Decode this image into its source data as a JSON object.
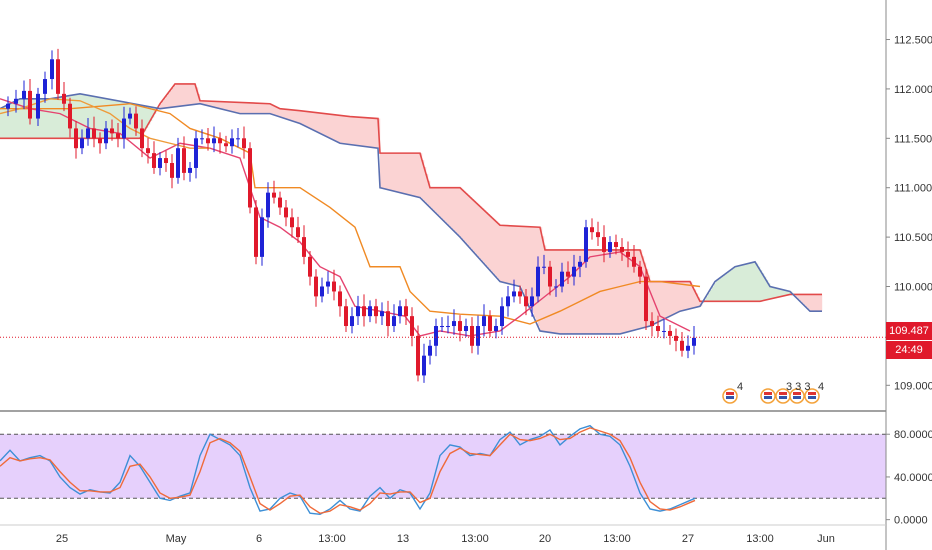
{
  "colors": {
    "bull": "#1e22d6",
    "bear": "#e0192b",
    "tenkan": "#e5436f",
    "kijun": "#f08a24",
    "chikou": "#ee9b3a",
    "spanA": "#e24a4a",
    "spanB": "#5a6fb0",
    "cloud_bull": "#d8ecd8",
    "cloud_bear": "#fbd3d3",
    "k_line": "#3d8fd6",
    "d_line": "#ef6a3a",
    "stoch_band": "#e2c8fb",
    "last_price": "#e0192b"
  },
  "price_axis": {
    "ticks": [
      "112.500",
      "112.000",
      "111.500",
      "111.000",
      "110.500",
      "110.000",
      "109.000"
    ],
    "last_price": "109.487",
    "countdown": "24:49"
  },
  "stoch_axis": {
    "ticks": [
      "80.0000",
      "40.0000",
      "0.0000"
    ]
  },
  "time_axis": {
    "labels": [
      "25",
      "May",
      "6",
      "13:00",
      "13",
      "13:00",
      "20",
      "13:00",
      "27",
      "13:00",
      "Jun"
    ]
  },
  "events": [
    {
      "icon": "us-flag-icon",
      "count": "4"
    },
    {
      "icon": "us-flag-icon",
      "count": "3 3 3"
    },
    {
      "icon": "us-flag-icon",
      "count": "4"
    }
  ],
  "chart_data": [
    {
      "type": "line",
      "subtype": "candlestick-ichimoku",
      "y_range": [
        108.75,
        112.9
      ],
      "x_labels": [
        "25",
        "May",
        "6",
        "13:00",
        "13",
        "13:00",
        "20",
        "13:00",
        "27",
        "13:00",
        "Jun"
      ],
      "last_price": 109.487,
      "series": [
        {
          "points": [
            [
              0,
              111.8
            ],
            [
              8,
              111.85
            ],
            [
              16,
              111.9
            ],
            [
              24,
              111.98
            ],
            [
              30,
              111.7
            ],
            [
              38,
              111.95
            ],
            [
              45,
              112.1
            ],
            [
              52,
              112.3
            ],
            [
              58,
              111.95
            ],
            [
              64,
              111.85
            ],
            [
              70,
              111.6
            ],
            [
              76,
              111.4
            ],
            [
              82,
              111.5
            ],
            [
              88,
              111.6
            ],
            [
              94,
              111.5
            ],
            [
              100,
              111.45
            ],
            [
              106,
              111.6
            ],
            [
              112,
              111.55
            ],
            [
              118,
              111.5
            ],
            [
              124,
              111.7
            ],
            [
              130,
              111.75
            ],
            [
              136,
              111.6
            ],
            [
              142,
              111.4
            ],
            [
              148,
              111.35
            ],
            [
              154,
              111.2
            ],
            [
              160,
              111.3
            ],
            [
              166,
              111.25
            ],
            [
              172,
              111.1
            ],
            [
              178,
              111.4
            ],
            [
              184,
              111.15
            ],
            [
              190,
              111.2
            ],
            [
              196,
              111.5
            ],
            [
              202,
              111.5
            ],
            [
              208,
              111.45
            ],
            [
              214,
              111.5
            ],
            [
              220,
              111.45
            ],
            [
              226,
              111.42
            ],
            [
              232,
              111.5
            ],
            [
              238,
              111.5
            ],
            [
              244,
              111.4
            ],
            [
              250,
              110.8
            ],
            [
              256,
              110.3
            ],
            [
              262,
              110.7
            ],
            [
              268,
              110.95
            ],
            [
              274,
              110.9
            ],
            [
              280,
              110.8
            ],
            [
              286,
              110.7
            ],
            [
              292,
              110.6
            ],
            [
              298,
              110.5
            ],
            [
              304,
              110.3
            ],
            [
              310,
              110.1
            ],
            [
              316,
              109.9
            ],
            [
              322,
              110.0
            ],
            [
              328,
              110.05
            ],
            [
              334,
              109.95
            ],
            [
              340,
              109.8
            ],
            [
              346,
              109.6
            ],
            [
              352,
              109.7
            ],
            [
              358,
              109.8
            ],
            [
              364,
              109.7
            ],
            [
              370,
              109.8
            ],
            [
              376,
              109.7
            ],
            [
              382,
              109.75
            ],
            [
              388,
              109.6
            ],
            [
              394,
              109.7
            ],
            [
              400,
              109.8
            ],
            [
              406,
              109.7
            ],
            [
              412,
              109.5
            ],
            [
              418,
              109.1
            ],
            [
              424,
              109.3
            ],
            [
              430,
              109.4
            ],
            [
              436,
              109.6
            ],
            [
              442,
              109.6
            ],
            [
              448,
              109.6
            ],
            [
              454,
              109.65
            ],
            [
              460,
              109.55
            ],
            [
              466,
              109.6
            ],
            [
              472,
              109.4
            ],
            [
              478,
              109.6
            ],
            [
              484,
              109.7
            ],
            [
              490,
              109.55
            ],
            [
              496,
              109.6
            ],
            [
              502,
              109.8
            ],
            [
              508,
              109.9
            ],
            [
              514,
              109.95
            ],
            [
              520,
              109.9
            ],
            [
              526,
              109.8
            ],
            [
              532,
              109.9
            ],
            [
              538,
              110.2
            ],
            [
              544,
              110.2
            ],
            [
              550,
              110.0
            ],
            [
              556,
              110.0
            ],
            [
              562,
              110.15
            ],
            [
              568,
              110.1
            ],
            [
              574,
              110.2
            ],
            [
              580,
              110.25
            ],
            [
              586,
              110.6
            ],
            [
              592,
              110.55
            ],
            [
              598,
              110.5
            ],
            [
              604,
              110.35
            ],
            [
              610,
              110.45
            ],
            [
              616,
              110.4
            ],
            [
              622,
              110.35
            ],
            [
              628,
              110.3
            ],
            [
              634,
              110.2
            ],
            [
              640,
              110.1
            ],
            [
              646,
              109.65
            ],
            [
              652,
              109.6
            ],
            [
              658,
              109.55
            ],
            [
              664,
              109.55
            ],
            [
              670,
              109.5
            ],
            [
              676,
              109.45
            ],
            [
              682,
              109.35
            ],
            [
              688,
              109.4
            ],
            [
              694,
              109.48
            ]
          ],
          "name": "Candles (close)"
        }
      ]
    },
    {
      "type": "line",
      "subtype": "stochastic",
      "y_range": [
        -5,
        98
      ],
      "levels": [
        80,
        20
      ],
      "series": [
        {
          "name": "",
          "points": [
            [
              0,
              55
            ],
            [
              10,
              65
            ],
            [
              20,
              55
            ],
            [
              30,
              58
            ],
            [
              40,
              60
            ],
            [
              50,
              55
            ],
            [
              60,
              40
            ],
            [
              70,
              30
            ],
            [
              80,
              24
            ],
            [
              90,
              28
            ],
            [
              100,
              26
            ],
            [
              110,
              25
            ],
            [
              120,
              35
            ],
            [
              130,
              60
            ],
            [
              140,
              50
            ],
            [
              150,
              35
            ],
            [
              160,
              20
            ],
            [
              170,
              18
            ],
            [
              180,
              22
            ],
            [
              190,
              25
            ],
            [
              200,
              60
            ],
            [
              210,
              80
            ],
            [
              220,
              75
            ],
            [
              230,
              70
            ],
            [
              240,
              60
            ],
            [
              250,
              30
            ],
            [
              260,
              8
            ],
            [
              270,
              10
            ],
            [
              280,
              20
            ],
            [
              290,
              25
            ],
            [
              300,
              22
            ],
            [
              310,
              6
            ],
            [
              320,
              5
            ],
            [
              330,
              10
            ],
            [
              340,
              18
            ],
            [
              350,
              10
            ],
            [
              360,
              8
            ],
            [
              370,
              22
            ],
            [
              380,
              30
            ],
            [
              390,
              20
            ],
            [
              400,
              28
            ],
            [
              410,
              25
            ],
            [
              420,
              10
            ],
            [
              430,
              25
            ],
            [
              440,
              60
            ],
            [
              450,
              70
            ],
            [
              460,
              68
            ],
            [
              470,
              60
            ],
            [
              480,
              62
            ],
            [
              490,
              60
            ],
            [
              500,
              75
            ],
            [
              510,
              82
            ],
            [
              520,
              70
            ],
            [
              530,
              75
            ],
            [
              540,
              78
            ],
            [
              550,
              84
            ],
            [
              560,
              70
            ],
            [
              570,
              78
            ],
            [
              580,
              85
            ],
            [
              590,
              88
            ],
            [
              600,
              80
            ],
            [
              610,
              78
            ],
            [
              620,
              70
            ],
            [
              630,
              50
            ],
            [
              640,
              25
            ],
            [
              650,
              10
            ],
            [
              660,
              8
            ],
            [
              670,
              10
            ],
            [
              680,
              14
            ],
            [
              690,
              18
            ],
            [
              695,
              20
            ]
          ]
        },
        {
          "name": "",
          "points": [
            [
              0,
              50
            ],
            [
              10,
              58
            ],
            [
              20,
              55
            ],
            [
              30,
              57
            ],
            [
              40,
              58
            ],
            [
              50,
              56
            ],
            [
              60,
              45
            ],
            [
              70,
              35
            ],
            [
              80,
              27
            ],
            [
              90,
              27
            ],
            [
              100,
              26
            ],
            [
              110,
              26
            ],
            [
              120,
              30
            ],
            [
              130,
              50
            ],
            [
              140,
              52
            ],
            [
              150,
              40
            ],
            [
              160,
              25
            ],
            [
              170,
              20
            ],
            [
              180,
              21
            ],
            [
              190,
              23
            ],
            [
              200,
              45
            ],
            [
              210,
              72
            ],
            [
              220,
              76
            ],
            [
              230,
              72
            ],
            [
              240,
              64
            ],
            [
              250,
              40
            ],
            [
              260,
              15
            ],
            [
              270,
              9
            ],
            [
              280,
              15
            ],
            [
              290,
              22
            ],
            [
              300,
              23
            ],
            [
              310,
              12
            ],
            [
              320,
              6
            ],
            [
              330,
              8
            ],
            [
              340,
              14
            ],
            [
              350,
              12
            ],
            [
              360,
              9
            ],
            [
              370,
              15
            ],
            [
              380,
              25
            ],
            [
              390,
              24
            ],
            [
              400,
              26
            ],
            [
              410,
              26
            ],
            [
              420,
              16
            ],
            [
              430,
              20
            ],
            [
              440,
              45
            ],
            [
              450,
              62
            ],
            [
              460,
              67
            ],
            [
              470,
              62
            ],
            [
              480,
              61
            ],
            [
              490,
              60
            ],
            [
              500,
              70
            ],
            [
              510,
              80
            ],
            [
              520,
              75
            ],
            [
              530,
              74
            ],
            [
              540,
              76
            ],
            [
              550,
              80
            ],
            [
              560,
              75
            ],
            [
              570,
              76
            ],
            [
              580,
              82
            ],
            [
              590,
              86
            ],
            [
              600,
              83
            ],
            [
              610,
              80
            ],
            [
              620,
              74
            ],
            [
              630,
              58
            ],
            [
              640,
              35
            ],
            [
              650,
              17
            ],
            [
              660,
              10
            ],
            [
              670,
              9
            ],
            [
              680,
              12
            ],
            [
              690,
              16
            ],
            [
              695,
              18
            ]
          ]
        }
      ]
    }
  ]
}
